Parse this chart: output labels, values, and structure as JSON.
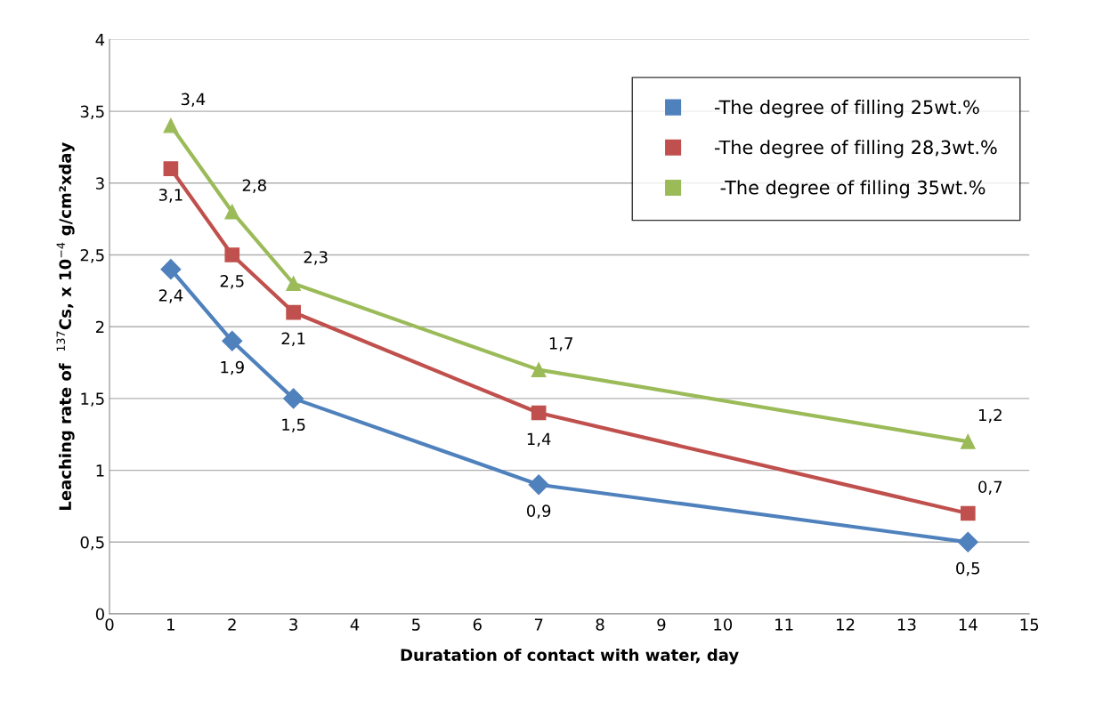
{
  "chart_data": {
    "type": "line",
    "xlabel": "Duratation of contact with water, day",
    "ylabel": "Leaching rate of  $^{137}$Cs, x 10$^{−4}$ g/cm²xday",
    "x": [
      1,
      2,
      3,
      7,
      14
    ],
    "series": [
      {
        "name": "-The degree of filling 25wt.%",
        "color": "#4f81bd",
        "marker": "diamond",
        "values": [
          2.4,
          1.9,
          1.5,
          0.9,
          0.5
        ],
        "value_labels": [
          "2,4",
          "1,9",
          "1,5",
          "0,9",
          "0,5"
        ]
      },
      {
        "name": "-The degree of filling 28,3wt.%",
        "color": "#c0504d",
        "marker": "square",
        "values": [
          3.1,
          2.5,
          2.1,
          1.4,
          0.7
        ],
        "value_labels": [
          "3,1",
          "2,5",
          "2,1",
          "1,4",
          "0,7"
        ]
      },
      {
        "name": " -The degree of filling 35wt.%",
        "color": "#9bbb59",
        "marker": "triangle",
        "values": [
          3.4,
          2.8,
          2.3,
          1.7,
          1.2
        ],
        "value_labels": [
          "3,4",
          "2,8",
          "2,3",
          "1,7",
          "1,2"
        ]
      }
    ],
    "xlim": [
      0,
      15
    ],
    "xticks": [
      0,
      1,
      2,
      3,
      4,
      5,
      6,
      7,
      8,
      9,
      10,
      11,
      12,
      13,
      14,
      15
    ],
    "ylim": [
      0,
      4
    ],
    "yticks": [
      0,
      {
        "value": 0.5,
        "label": "0,5"
      },
      1,
      {
        "value": 1.5,
        "label": "1,5"
      },
      2,
      {
        "value": 2.5,
        "label": "2,5"
      },
      3,
      {
        "value": 3.5,
        "label": "3,5"
      },
      4
    ],
    "grid": "y",
    "legend": "top right",
    "line_style": "solid"
  }
}
